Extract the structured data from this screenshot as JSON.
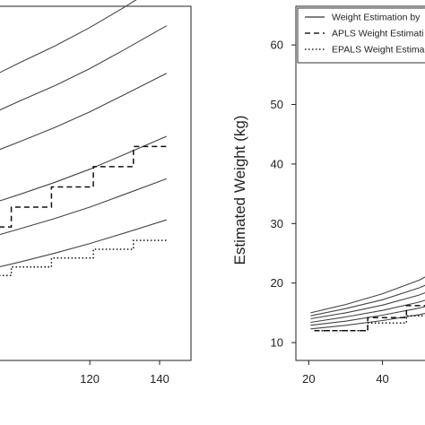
{
  "chart_data": [
    {
      "type": "line",
      "title": "",
      "xlabel": "",
      "ylabel": "",
      "x_ticks": [
        120,
        140
      ],
      "xlim": [
        94,
        149
      ],
      "ylim": [
        0,
        100
      ],
      "series": [
        {
          "style": "solid",
          "x": [
            94,
            100,
            110,
            120,
            130,
            142
          ],
          "values": [
            81.2,
            84.1,
            88.8,
            94.0,
            99.8,
            107.2
          ]
        },
        {
          "style": "solid",
          "x": [
            94,
            100,
            110,
            120,
            130,
            142
          ],
          "values": [
            70.6,
            73.3,
            77.6,
            82.4,
            87.8,
            94.5
          ]
        },
        {
          "style": "solid",
          "x": [
            94,
            100,
            110,
            120,
            130,
            142
          ],
          "values": [
            59.5,
            61.8,
            65.8,
            70.2,
            75.1,
            81.1
          ]
        },
        {
          "style": "solid",
          "x": [
            94,
            100,
            110,
            120,
            130,
            142
          ],
          "values": [
            45.0,
            46.9,
            50.3,
            54.0,
            58.2,
            63.3
          ]
        },
        {
          "style": "solid",
          "x": [
            94,
            100,
            110,
            120,
            130,
            142
          ],
          "values": [
            35.5,
            37.2,
            40.1,
            43.3,
            46.9,
            51.3
          ]
        },
        {
          "style": "solid",
          "x": [
            94,
            100,
            110,
            120,
            130,
            142
          ],
          "values": [
            26.4,
            27.8,
            30.3,
            33.0,
            36.0,
            39.7
          ]
        },
        {
          "style": "dashed",
          "x": [
            94,
            97.5,
            97.5,
            109,
            109,
            121,
            121,
            132.5,
            132.5,
            142
          ],
          "values": [
            37.7,
            37.7,
            43.3,
            43.3,
            49.0,
            49.0,
            54.7,
            54.7,
            60.4,
            60.4
          ]
        },
        {
          "style": "dotted",
          "x": [
            94,
            97.5,
            97.5,
            109,
            109,
            121,
            121,
            132.5,
            132.5,
            142
          ],
          "values": [
            24.0,
            24.0,
            26.4,
            26.4,
            28.9,
            28.9,
            31.4,
            31.4,
            33.9,
            33.9
          ]
        }
      ]
    },
    {
      "type": "line",
      "title": "",
      "xlabel": "",
      "ylabel": "Estimated Weight (kg)",
      "x_ticks": [
        20,
        40
      ],
      "y_ticks": [
        10,
        20,
        30,
        40,
        50,
        60
      ],
      "xlim": [
        16.5,
        53
      ],
      "ylim": [
        7,
        66.5
      ],
      "legend": {
        "placement": "top-right",
        "entries": [
          {
            "label": "Weight Estimation by",
            "style": "solid"
          },
          {
            "label": "APLS Weight Estimati",
            "style": "dashed"
          },
          {
            "label": "EPALS Weight Estima",
            "style": "dotted"
          }
        ]
      },
      "series": [
        {
          "style": "solid",
          "x": [
            20.5,
            30,
            40,
            50,
            53
          ],
          "values": [
            15.0,
            16.4,
            18.2,
            20.5,
            21.5
          ]
        },
        {
          "style": "solid",
          "x": [
            20.5,
            30,
            40,
            50,
            53
          ],
          "values": [
            14.5,
            15.7,
            17.2,
            19.2,
            20.0
          ]
        },
        {
          "style": "solid",
          "x": [
            20.5,
            30,
            40,
            50,
            53
          ],
          "values": [
            14.0,
            15.0,
            16.3,
            18.0,
            18.7
          ]
        },
        {
          "style": "solid",
          "x": [
            20.5,
            30,
            40,
            50,
            53
          ],
          "values": [
            13.4,
            14.3,
            15.4,
            16.8,
            17.4
          ]
        },
        {
          "style": "solid",
          "x": [
            20.5,
            30,
            40,
            50,
            53
          ],
          "values": [
            12.9,
            13.6,
            14.6,
            15.8,
            16.3
          ]
        },
        {
          "style": "solid",
          "x": [
            20.5,
            30,
            40,
            50,
            53
          ],
          "values": [
            12.3,
            12.9,
            13.7,
            14.7,
            15.1
          ]
        },
        {
          "style": "dashed",
          "x": [
            21.5,
            36,
            36,
            46.5,
            46.5,
            53
          ],
          "values": [
            12.0,
            12.0,
            14.2,
            14.2,
            16.2,
            16.2
          ]
        },
        {
          "style": "dotted",
          "x": [
            21.5,
            36,
            36,
            46.5,
            46.5,
            53
          ],
          "values": [
            12.0,
            12.0,
            13.3,
            13.3,
            14.5,
            14.5
          ]
        }
      ]
    }
  ]
}
